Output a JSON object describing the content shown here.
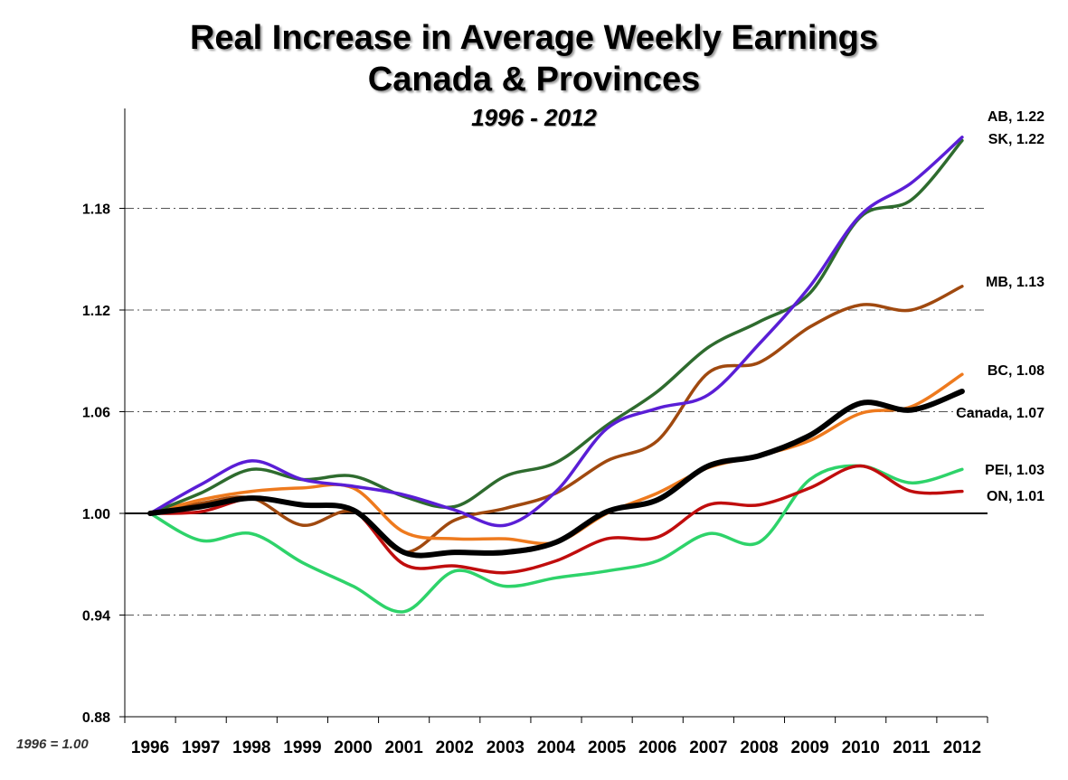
{
  "chart_data": {
    "type": "line",
    "title": "Real Increase in Average Weekly Earnings",
    "title_line2": "Canada & Provinces",
    "subtitle": "1996 - 2012",
    "base_note": "1996 = 1.00",
    "x": [
      "1996",
      "1997",
      "1998",
      "1999",
      "2000",
      "2001",
      "2002",
      "2003",
      "2004",
      "2005",
      "2006",
      "2007",
      "2008",
      "2009",
      "2010",
      "2011",
      "2012"
    ],
    "y_ticks": [
      "1.18",
      "1.12",
      "1.06",
      "1.00",
      "0.94",
      "0.88"
    ],
    "ylim": [
      0.88,
      1.24
    ],
    "baseline": 1.0,
    "grid": true,
    "series": [
      {
        "name": "AB",
        "end_label": "AB, 1.22",
        "color": "#5a1ed6",
        "values": [
          1.0,
          1.017,
          1.031,
          1.02,
          1.016,
          1.011,
          1.002,
          0.993,
          1.013,
          1.05,
          1.062,
          1.07,
          1.1,
          1.134,
          1.176,
          1.195,
          1.222
        ]
      },
      {
        "name": "SK",
        "end_label": "SK, 1.22",
        "color": "#2e6b2e",
        "values": [
          1.0,
          1.012,
          1.026,
          1.02,
          1.022,
          1.01,
          1.004,
          1.022,
          1.03,
          1.052,
          1.072,
          1.098,
          1.113,
          1.13,
          1.175,
          1.185,
          1.22
        ]
      },
      {
        "name": "MB",
        "end_label": "MB, 1.13",
        "color": "#a0490f",
        "values": [
          1.0,
          1.006,
          1.009,
          0.993,
          1.001,
          0.977,
          0.996,
          1.003,
          1.012,
          1.031,
          1.043,
          1.083,
          1.089,
          1.11,
          1.123,
          1.12,
          1.134
        ]
      },
      {
        "name": "BC",
        "end_label": "BC, 1.08",
        "color": "#ee7a1e",
        "values": [
          1.0,
          1.008,
          1.013,
          1.015,
          1.015,
          0.989,
          0.985,
          0.985,
          0.983,
          1.0,
          1.012,
          1.027,
          1.034,
          1.043,
          1.059,
          1.063,
          1.082
        ]
      },
      {
        "name": "Canada",
        "end_label": "Canada, 1.07",
        "color": "#000000",
        "values": [
          1.0,
          1.004,
          1.009,
          1.005,
          1.002,
          0.977,
          0.977,
          0.977,
          0.983,
          1.001,
          1.008,
          1.028,
          1.034,
          1.046,
          1.065,
          1.061,
          1.072
        ]
      },
      {
        "name": "PEI",
        "end_label": "PEI, 1.03",
        "color": "#2ed36a",
        "values": [
          1.0,
          0.984,
          0.988,
          0.971,
          0.957,
          0.942,
          0.966,
          0.957,
          0.962,
          0.966,
          0.972,
          0.988,
          0.983,
          1.02,
          1.028,
          1.018,
          1.026
        ]
      },
      {
        "name": "ON",
        "end_label": "ON, 1.01",
        "color": "#c00d0d",
        "values": [
          1.0,
          1.001,
          1.009,
          1.005,
          1.002,
          0.97,
          0.969,
          0.965,
          0.972,
          0.985,
          0.986,
          1.005,
          1.005,
          1.015,
          1.028,
          1.013,
          1.013
        ]
      }
    ]
  }
}
